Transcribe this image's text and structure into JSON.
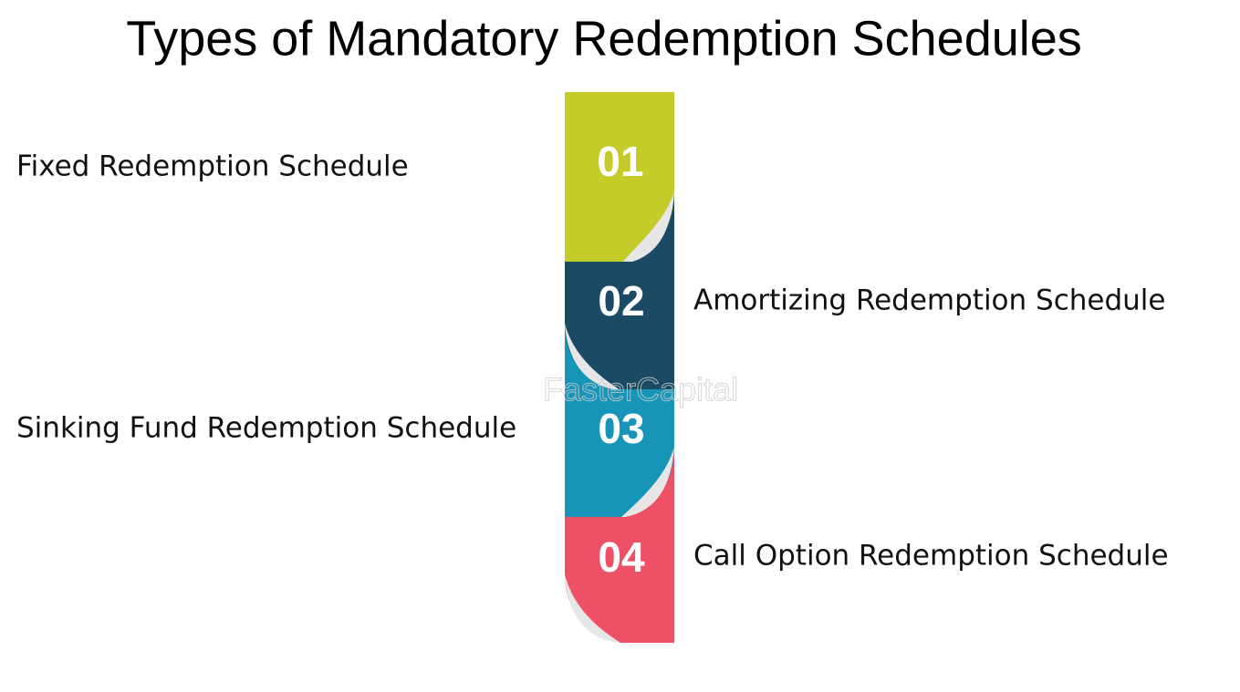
{
  "title": "Types of Mandatory Redemption Schedules",
  "watermark": "FasterCapital",
  "steps": [
    {
      "number": "01",
      "label": "Fixed Redemption Schedule"
    },
    {
      "number": "02",
      "label": "Amortizing Redemption Schedule"
    },
    {
      "number": "03",
      "label": "Sinking Fund Redemption Schedule"
    },
    {
      "number": "04",
      "label": "Call Option Redemption Schedule"
    }
  ]
}
